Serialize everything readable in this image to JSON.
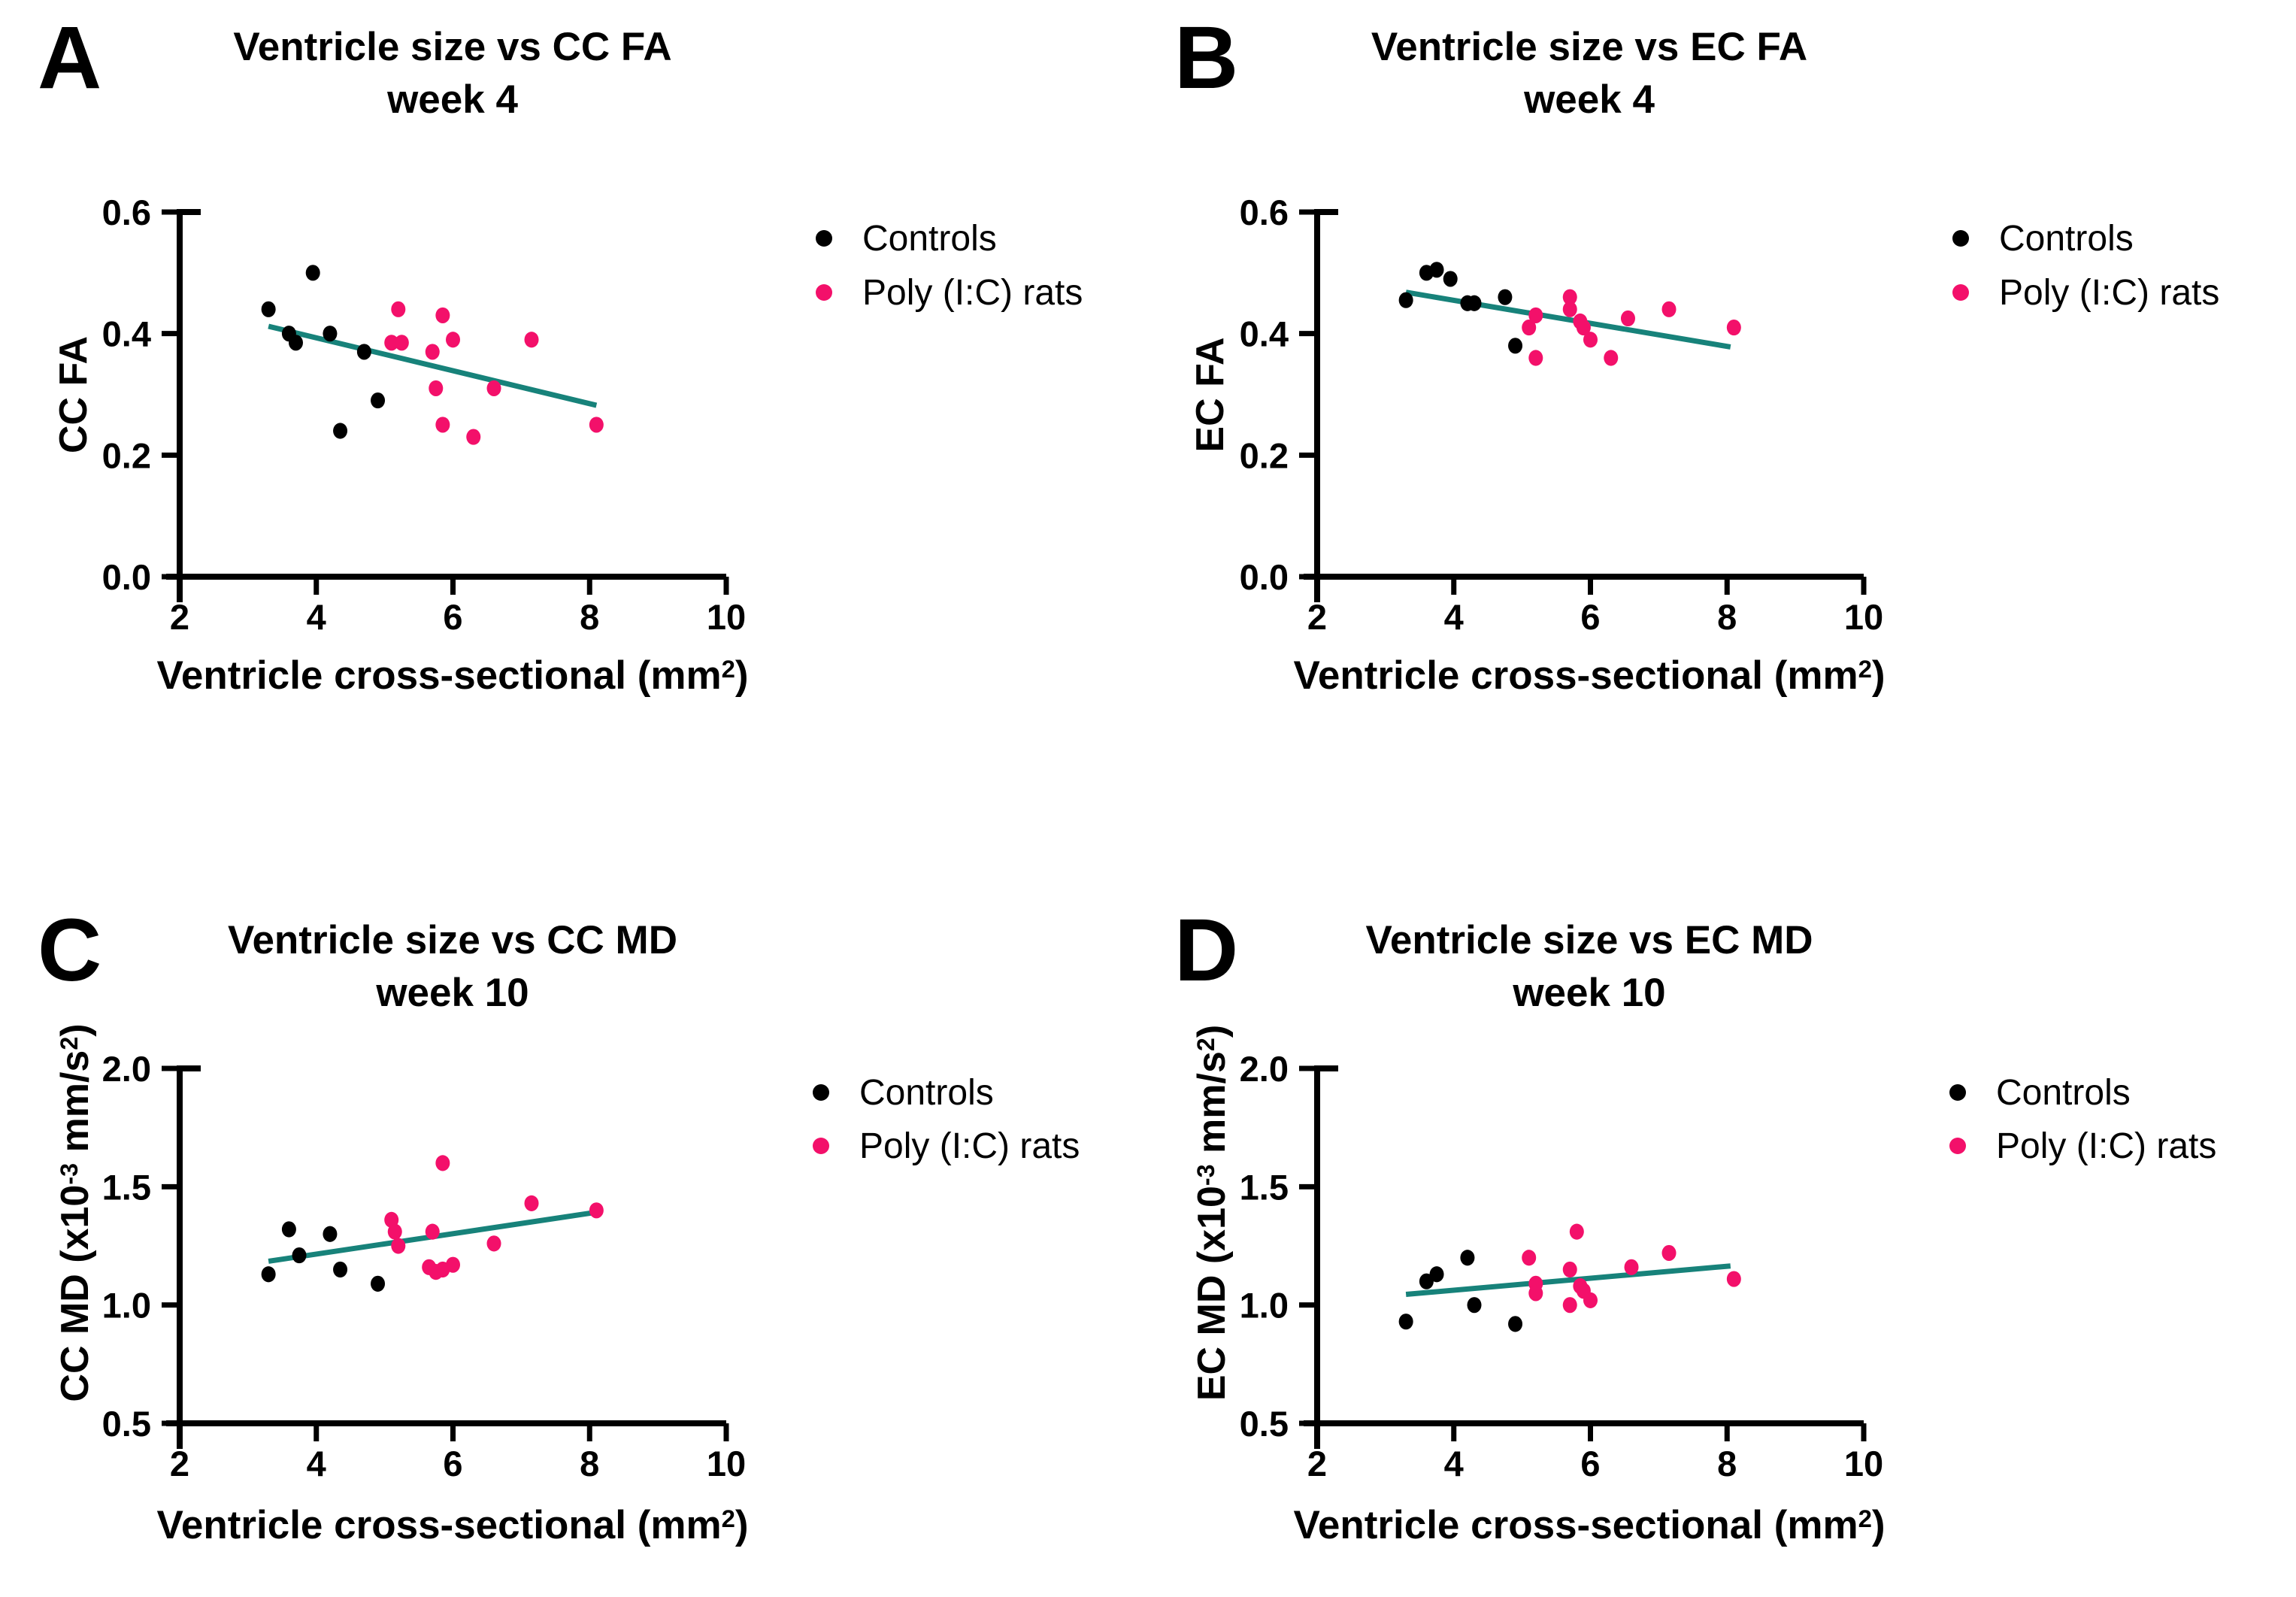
{
  "figure": {
    "background": "#ffffff"
  },
  "colors": {
    "controls": "#000000",
    "polyic": "#F3106A",
    "trend": "#17827A",
    "axis": "#000000"
  },
  "legend": {
    "controls_label": "Controls",
    "polyic_label": "Poly (I:C) rats"
  },
  "xaxis": {
    "label_main": "Ventricle cross-sectional (mm",
    "label_sup": "2",
    "label_close": ")"
  },
  "panels": {
    "a": {
      "letter": "A",
      "title_line1": "Ventricle size vs CC FA",
      "title_line2": "week 4",
      "ylabel": "CC FA"
    },
    "b": {
      "letter": "B",
      "title_line1": "Ventricle size vs EC FA",
      "title_line2": "week 4",
      "ylabel": "EC FA"
    },
    "c": {
      "letter": "C",
      "title_line1": "Ventricle size vs CC MD",
      "title_line2": "week 10",
      "ylabel": {
        "p0": "CC MD (x10",
        "sup1": "-3",
        "p1": " mm/s",
        "sup2": "2",
        "p2": ")"
      }
    },
    "d": {
      "letter": "D",
      "title_line1": "Ventricle size vs EC MD",
      "title_line2": "week 10",
      "ylabel": {
        "p0": "EC MD (x10",
        "sup1": "-3",
        "p1": " mm/s",
        "sup2": "2",
        "p2": ")"
      }
    }
  },
  "chart_data": [
    {
      "id": "a",
      "type": "scatter",
      "title": "Ventricle size vs CC FA week 4",
      "xlabel": "Ventricle cross-sectional (mm2)",
      "ylabel": "CC FA",
      "xlim": [
        2,
        10
      ],
      "ylim": [
        0,
        0.6
      ],
      "grid": false,
      "legend_position": "right-top",
      "x_ticks": [
        2,
        4,
        6,
        8,
        10
      ],
      "x_tick_labels": [
        "2",
        "4",
        "6",
        "8",
        "10"
      ],
      "y_ticks": [
        0,
        0.2,
        0.4,
        0.6
      ],
      "y_tick_labels": [
        "0.0",
        "0.2",
        "0.4",
        "0.6"
      ],
      "series": [
        {
          "name": "Controls",
          "color_key": "controls",
          "points": [
            [
              3.3,
              0.44
            ],
            [
              3.6,
              0.4
            ],
            [
              3.7,
              0.385
            ],
            [
              3.95,
              0.5
            ],
            [
              4.2,
              0.4
            ],
            [
              4.7,
              0.37
            ],
            [
              4.35,
              0.24
            ],
            [
              4.9,
              0.29
            ]
          ]
        },
        {
          "name": "Poly (I:C) rats",
          "color_key": "polyic",
          "points": [
            [
              5.1,
              0.385
            ],
            [
              5.2,
              0.44
            ],
            [
              5.25,
              0.385
            ],
            [
              5.7,
              0.37
            ],
            [
              5.75,
              0.31
            ],
            [
              5.85,
              0.43
            ],
            [
              5.85,
              0.25
            ],
            [
              6.0,
              0.39
            ],
            [
              6.3,
              0.23
            ],
            [
              6.6,
              0.31
            ],
            [
              7.15,
              0.39
            ],
            [
              8.1,
              0.25
            ]
          ]
        }
      ],
      "trend": [
        [
          3.3,
          0.412
        ],
        [
          8.1,
          0.282
        ]
      ]
    },
    {
      "id": "b",
      "type": "scatter",
      "title": "Ventricle size vs EC FA week 4",
      "xlabel": "Ventricle cross-sectional (mm2)",
      "ylabel": "EC FA",
      "xlim": [
        2,
        10
      ],
      "ylim": [
        0,
        0.6
      ],
      "grid": false,
      "legend_position": "right-top",
      "x_ticks": [
        2,
        4,
        6,
        8,
        10
      ],
      "x_tick_labels": [
        "2",
        "4",
        "6",
        "8",
        "10"
      ],
      "y_ticks": [
        0,
        0.2,
        0.4,
        0.6
      ],
      "y_tick_labels": [
        "0.0",
        "0.2",
        "0.4",
        "0.6"
      ],
      "series": [
        {
          "name": "Controls",
          "color_key": "controls",
          "points": [
            [
              3.3,
              0.455
            ],
            [
              3.6,
              0.5
            ],
            [
              3.75,
              0.505
            ],
            [
              3.95,
              0.49
            ],
            [
              4.2,
              0.45
            ],
            [
              4.3,
              0.45
            ],
            [
              4.75,
              0.46
            ],
            [
              4.9,
              0.38
            ]
          ]
        },
        {
          "name": "Poly (I:C) rats",
          "color_key": "polyic",
          "points": [
            [
              5.1,
              0.41
            ],
            [
              5.2,
              0.43
            ],
            [
              5.2,
              0.36
            ],
            [
              5.7,
              0.46
            ],
            [
              5.7,
              0.44
            ],
            [
              5.85,
              0.42
            ],
            [
              5.9,
              0.41
            ],
            [
              6.0,
              0.39
            ],
            [
              6.3,
              0.36
            ],
            [
              6.55,
              0.425
            ],
            [
              7.15,
              0.44
            ],
            [
              8.1,
              0.41
            ]
          ]
        }
      ],
      "trend": [
        [
          3.3,
          0.468
        ],
        [
          8.05,
          0.378
        ]
      ]
    },
    {
      "id": "c",
      "type": "scatter",
      "title": "Ventricle size vs CC MD week 10",
      "xlabel": "Ventricle cross-sectional (mm2)",
      "ylabel": "CC MD (x10-3 mm/s2)",
      "xlim": [
        2,
        10
      ],
      "ylim": [
        0.5,
        2.0
      ],
      "grid": false,
      "legend_position": "right-top",
      "x_ticks": [
        2,
        4,
        6,
        8,
        10
      ],
      "x_tick_labels": [
        "2",
        "4",
        "6",
        "8",
        "10"
      ],
      "y_ticks": [
        0.5,
        1.0,
        1.5,
        2.0
      ],
      "y_tick_labels": [
        "0.5",
        "1.0",
        "1.5",
        "2.0"
      ],
      "series": [
        {
          "name": "Controls",
          "color_key": "controls",
          "points": [
            [
              3.3,
              1.13
            ],
            [
              3.6,
              1.32
            ],
            [
              3.75,
              1.21
            ],
            [
              4.2,
              1.3
            ],
            [
              4.35,
              1.15
            ],
            [
              4.9,
              1.09
            ]
          ]
        },
        {
          "name": "Poly (I:C) rats",
          "color_key": "polyic",
          "points": [
            [
              5.1,
              1.36
            ],
            [
              5.15,
              1.31
            ],
            [
              5.2,
              1.25
            ],
            [
              5.7,
              1.31
            ],
            [
              5.65,
              1.16
            ],
            [
              5.75,
              1.14
            ],
            [
              5.85,
              1.15
            ],
            [
              5.85,
              1.6
            ],
            [
              6.0,
              1.17
            ],
            [
              6.6,
              1.26
            ],
            [
              7.15,
              1.43
            ],
            [
              8.1,
              1.4
            ]
          ]
        }
      ],
      "trend": [
        [
          3.3,
          1.185
        ],
        [
          8.05,
          1.39
        ]
      ]
    },
    {
      "id": "d",
      "type": "scatter",
      "title": "Ventricle size vs EC MD week 10",
      "xlabel": "Ventricle cross-sectional (mm2)",
      "ylabel": "EC MD (x10-3 mm/s2)",
      "xlim": [
        2,
        10
      ],
      "ylim": [
        0.5,
        2.0
      ],
      "grid": false,
      "legend_position": "right-top",
      "x_ticks": [
        2,
        4,
        6,
        8,
        10
      ],
      "x_tick_labels": [
        "2",
        "4",
        "6",
        "8",
        "10"
      ],
      "y_ticks": [
        0.5,
        1.0,
        1.5,
        2.0
      ],
      "y_tick_labels": [
        "0.5",
        "1.0",
        "1.5",
        "2.0"
      ],
      "series": [
        {
          "name": "Controls",
          "color_key": "controls",
          "points": [
            [
              3.3,
              0.93
            ],
            [
              3.6,
              1.1
            ],
            [
              3.75,
              1.13
            ],
            [
              4.2,
              1.2
            ],
            [
              4.3,
              1.0
            ],
            [
              4.9,
              0.92
            ]
          ]
        },
        {
          "name": "Poly (I:C) rats",
          "color_key": "polyic",
          "points": [
            [
              5.1,
              1.2
            ],
            [
              5.2,
              1.09
            ],
            [
              5.2,
              1.05
            ],
            [
              5.7,
              1.15
            ],
            [
              5.7,
              1.0
            ],
            [
              5.8,
              1.31
            ],
            [
              5.85,
              1.08
            ],
            [
              5.9,
              1.06
            ],
            [
              6.0,
              1.02
            ],
            [
              6.6,
              1.16
            ],
            [
              7.15,
              1.22
            ],
            [
              8.1,
              1.11
            ]
          ]
        }
      ],
      "trend": [
        [
          3.3,
          1.045
        ],
        [
          8.05,
          1.165
        ]
      ]
    }
  ]
}
